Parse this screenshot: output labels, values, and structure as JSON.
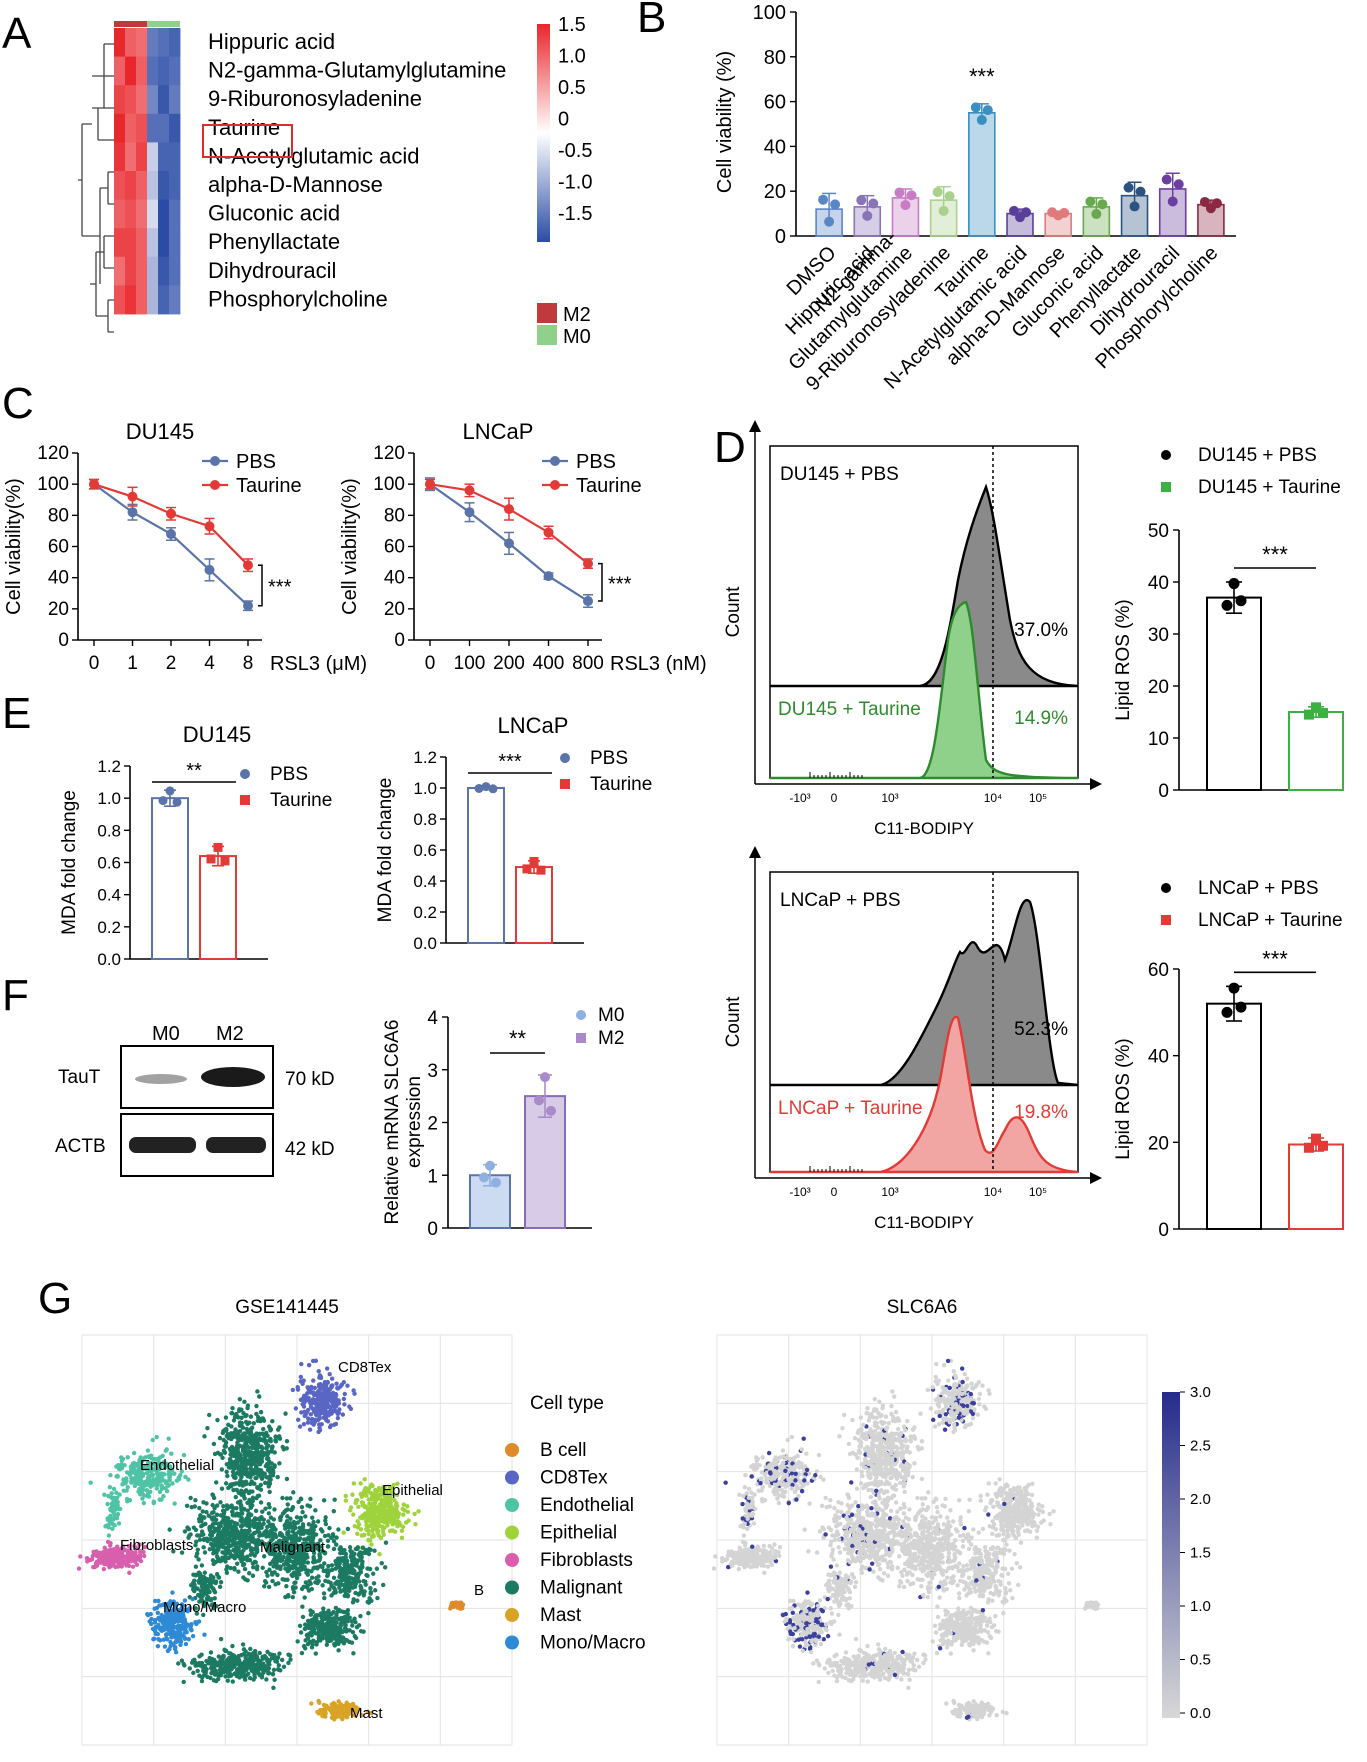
{
  "panels": {
    "A": {
      "label": "A",
      "rows": [
        "Hippuric acid",
        "N2-gamma-Glutamylglutamine",
        "9-Riburonosyladenine",
        "Taurine",
        "N-Acetylglutamic acid",
        "alpha-D-Mannose",
        "Gluconic acid",
        "Phenyllactate",
        "Dihydrouracil",
        "Phosphorylcholine"
      ],
      "highlighted_row": "Taurine",
      "values": [
        [
          1.5,
          1.1,
          1.0,
          -1.1,
          -1.2,
          -1.3
        ],
        [
          1.1,
          1.5,
          1.1,
          -1.2,
          -1.3,
          -1.2
        ],
        [
          1.3,
          1.2,
          1.0,
          -1.0,
          -1.4,
          -1.1
        ],
        [
          1.5,
          1.1,
          1.2,
          -1.2,
          -1.2,
          -1.4
        ],
        [
          1.4,
          1.0,
          1.3,
          -0.4,
          -1.3,
          -1.3
        ],
        [
          1.2,
          1.3,
          1.1,
          -0.5,
          -1.4,
          -1.3
        ],
        [
          1.1,
          1.2,
          1.0,
          -0.3,
          -1.6,
          -1.2
        ],
        [
          1.3,
          1.3,
          1.1,
          -0.5,
          -1.5,
          -1.2
        ],
        [
          1.0,
          1.3,
          1.1,
          -0.6,
          -1.4,
          -1.2
        ],
        [
          1.2,
          1.4,
          1.1,
          -0.6,
          -1.3,
          -1.1
        ]
      ],
      "colorbar_ticks": [
        "1.5",
        "1.0",
        "0.5",
        "0",
        "-0.5",
        "-1.0",
        "-1.5"
      ],
      "groups": [
        {
          "name": "M2",
          "color": "#c0393b"
        },
        {
          "name": "M0",
          "color": "#8fd18b"
        }
      ],
      "colors": {
        "high": "#e8262b",
        "mid": "#ffffff",
        "low": "#2b4ca6"
      }
    },
    "B": {
      "label": "B",
      "ylabel": "Cell viability (%)",
      "yticks": [
        "0",
        "20",
        "40",
        "60",
        "80",
        "100"
      ],
      "significance": "***",
      "chart_data": {
        "type": "bar",
        "categories": [
          "DMSO",
          "Hippuric acid",
          "N2-gamma-Glutamylglutamine",
          "9-Riburonosyladenine",
          "Taurine",
          "N-Acetylglutamic acid",
          "alpha-D-Mannose",
          "Gluconic acid",
          "Phenyllactate",
          "Dihydrouracil",
          "Phosphorylcholine"
        ],
        "category_labels": [
          "DMSO",
          "Hippuric acid",
          "N2-gamma-\nGlutamylglutamine",
          "9-Riburonosyladenine",
          "Taurine",
          "N-Acetylglutamic acid",
          "alpha-D-Mannose",
          "Gluconic acid",
          "Phenyllactate",
          "Dihydrouracil",
          "Phosphorylcholine"
        ],
        "values": [
          12,
          13,
          17,
          16,
          55,
          10,
          10,
          13,
          18,
          21,
          14
        ],
        "errors": [
          7,
          5,
          4,
          6,
          4,
          2,
          1,
          4,
          6,
          7,
          2
        ],
        "colors": [
          "#5b86c6",
          "#8a74b8",
          "#c77cc4",
          "#a9d18e",
          "#3a8fc0",
          "#5a3f9a",
          "#e07b7b",
          "#6aa84f",
          "#2c5282",
          "#6b3fa0",
          "#8b2844"
        ],
        "ylim": [
          0,
          100
        ]
      }
    },
    "C": {
      "label": "C",
      "charts": [
        {
          "title": "DU145",
          "ylabel": "Cell viability(%)",
          "xlabel": "RSL3 (μM)",
          "xticks": [
            "0",
            "1",
            "2",
            "4",
            "8"
          ],
          "yticks": [
            "0",
            "20",
            "40",
            "60",
            "80",
            "100",
            "120"
          ],
          "series": [
            {
              "name": "PBS",
              "color": "#5a73a8",
              "values": [
                100,
                82,
                68,
                45,
                22
              ],
              "errors": [
                3,
                5,
                4,
                7,
                3
              ]
            },
            {
              "name": "Taurine",
              "color": "#e23a36",
              "values": [
                100,
                92,
                81,
                73,
                48
              ],
              "errors": [
                3,
                6,
                4,
                5,
                4
              ]
            }
          ],
          "significance": "***"
        },
        {
          "title": "LNCaP",
          "ylabel": "Cell viability(%)",
          "xlabel": "RSL3 (nM)",
          "xticks": [
            "0",
            "100",
            "200",
            "400",
            "800"
          ],
          "yticks": [
            "0",
            "20",
            "40",
            "60",
            "80",
            "100",
            "120"
          ],
          "series": [
            {
              "name": "PBS",
              "color": "#5a73a8",
              "values": [
                100,
                82,
                62,
                41,
                25
              ],
              "errors": [
                4,
                6,
                7,
                2,
                4
              ]
            },
            {
              "name": "Taurine",
              "color": "#e23a36",
              "values": [
                100,
                96,
                84,
                69,
                49
              ],
              "errors": [
                3,
                4,
                7,
                4,
                3
              ]
            }
          ],
          "significance": "***"
        }
      ]
    },
    "D": {
      "label": "D",
      "flow": [
        {
          "top_label": "DU145 + PBS",
          "bottom_label": "DU145 + Taurine",
          "top_pct": "37.0%",
          "bottom_pct": "14.9%",
          "bottom_color": "#2e8b2e",
          "fill_color": "#8fd18b",
          "xlabel": "C11-BODIPY",
          "ylabel": "Count",
          "xticks": [
            "-10³",
            "0",
            "10³",
            "10⁴",
            "10⁵"
          ]
        },
        {
          "top_label": "LNCaP  + PBS",
          "bottom_label": "LNCaP + Taurine",
          "top_pct": "52.3%",
          "bottom_pct": "19.8%",
          "bottom_color": "#e23a36",
          "fill_color": "#f2a6a4",
          "xlabel": "C11-BODIPY",
          "ylabel": "Count",
          "xticks": [
            "-10³",
            "0",
            "10³",
            "10⁴",
            "10⁵"
          ]
        }
      ],
      "bars": [
        {
          "legend": [
            "DU145 + PBS",
            "DU145 + Taurine"
          ],
          "legend_colors": [
            "#000000",
            "#3cb043"
          ],
          "ylabel": "Lipid ROS (%)",
          "yticks": [
            "0",
            "10",
            "20",
            "30",
            "40",
            "50"
          ],
          "ylim": [
            0,
            50
          ],
          "values": [
            37,
            15
          ],
          "errors": [
            3,
            1
          ],
          "significance": "***"
        },
        {
          "legend": [
            "LNCaP + PBS",
            "LNCaP + Taurine"
          ],
          "legend_colors": [
            "#000000",
            "#e23a36"
          ],
          "ylabel": "Lipid ROS (%)",
          "yticks": [
            "0",
            "20",
            "40",
            "60"
          ],
          "ylim": [
            0,
            60
          ],
          "values": [
            52,
            19.5
          ],
          "errors": [
            4,
            1.5
          ],
          "significance": "***"
        }
      ]
    },
    "E": {
      "label": "E",
      "charts": [
        {
          "title": "DU145",
          "ylabel": "MDA fold change",
          "yticks": [
            "0.0",
            "0.2",
            "0.4",
            "0.6",
            "0.8",
            "1.0",
            "1.2"
          ],
          "ylim": [
            0,
            1.2
          ],
          "legend": [
            "PBS",
            "Taurine"
          ],
          "values": [
            1.0,
            0.64
          ],
          "errors": [
            0.05,
            0.06
          ],
          "significance": "**"
        },
        {
          "title": "LNCaP",
          "ylabel": "MDA fold change",
          "yticks": [
            "0.0",
            "0.2",
            "0.4",
            "0.6",
            "0.8",
            "1.0",
            "1.2"
          ],
          "ylim": [
            0,
            1.2
          ],
          "legend": [
            "PBS",
            "Taurine"
          ],
          "values": [
            1.0,
            0.49
          ],
          "errors": [
            0.01,
            0.04
          ],
          "significance": "***"
        }
      ]
    },
    "F": {
      "label": "F",
      "blot": {
        "lanes": [
          "M0",
          "M2"
        ],
        "rows": [
          {
            "name": "TauT",
            "size": "70 kD"
          },
          {
            "name": "ACTB",
            "size": "42 kD"
          }
        ]
      },
      "bar": {
        "ylabel": "Relative mRNA SLC6A6",
        "ylabel2": "expression",
        "yticks": [
          "0",
          "1",
          "2",
          "3",
          "4"
        ],
        "ylim": [
          0,
          4
        ],
        "legend": [
          "M0",
          "M2"
        ],
        "legend_colors": [
          "#8fb0e0",
          "#a98bc9"
        ],
        "values": [
          1.0,
          2.5
        ],
        "errors": [
          0.2,
          0.4
        ],
        "significance": "**"
      }
    },
    "G": {
      "label": "G",
      "umap_title": "GSE141445",
      "expr_title": "SLC6A6",
      "legend_title": "Cell type",
      "cell_types": [
        {
          "name": "B cell",
          "color": "#e08a2a"
        },
        {
          "name": "CD8Tex",
          "color": "#5a66c4"
        },
        {
          "name": "Endothelial",
          "color": "#4fc3a6"
        },
        {
          "name": "Epithelial",
          "color": "#9fd33c"
        },
        {
          "name": "Fibroblasts",
          "color": "#d85fae"
        },
        {
          "name": "Malignant",
          "color": "#1c7a62"
        },
        {
          "name": "Mast",
          "color": "#d9a326"
        },
        {
          "name": "Mono/Macro",
          "color": "#2f8ad6"
        }
      ],
      "cluster_labels": [
        "CD8Tex",
        "Endothelial",
        "Epithelial",
        "Fibroblasts",
        "Malignant",
        "B",
        "Mono/Macro",
        "Mast"
      ],
      "colorbar_ticks": [
        "3.0",
        "2.5",
        "2.0",
        "1.5",
        "1.0",
        "0.5",
        "0.0"
      ]
    }
  }
}
